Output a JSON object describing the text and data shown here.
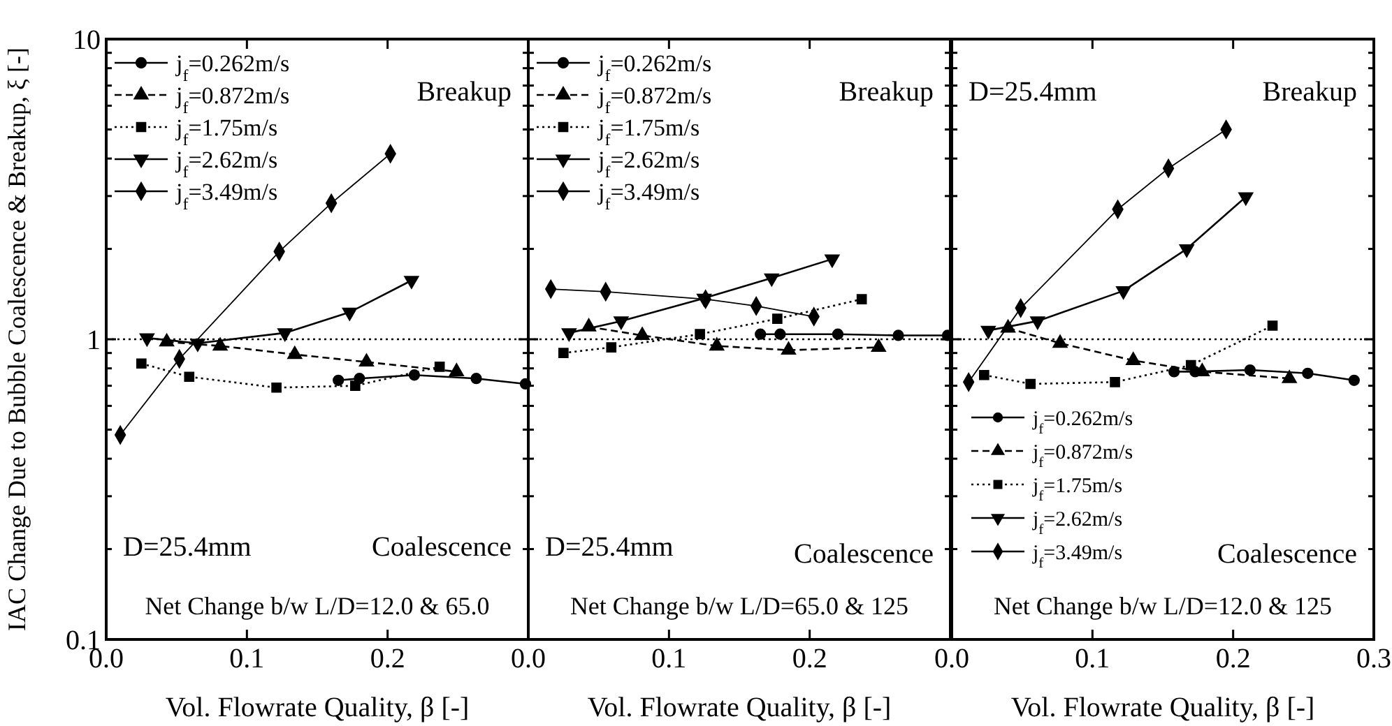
{
  "chart_data": [
    {
      "type": "line",
      "xlabel": "Vol. Flowrate Quality,  β [-]",
      "ylabel": "IAC Change Due to Bubble Coalescence & Breakup,  ξ [-]",
      "log": "y",
      "xlim": [
        0,
        0.3
      ],
      "ylim": [
        0.1,
        10
      ],
      "xticks": [
        {
          "value": 0,
          "label": "0.0"
        },
        {
          "value": 0.1,
          "label": "0.1"
        },
        {
          "value": 0.2,
          "label": "0.2"
        },
        {
          "value": 0.3,
          "label": null
        }
      ],
      "yticks": [
        0.1,
        {
          "value": 0.2,
          "label": null
        },
        {
          "value": 0.3,
          "label": null
        },
        {
          "value": 0.4,
          "label": null
        },
        {
          "value": 0.5,
          "label": null
        },
        {
          "value": 0.6,
          "label": null
        },
        {
          "value": 0.7,
          "label": null
        },
        {
          "value": 0.8,
          "label": null
        },
        {
          "value": 0.9,
          "label": null
        },
        1,
        {
          "value": 2,
          "label": null
        },
        {
          "value": 3,
          "label": null
        },
        {
          "value": 4,
          "label": null
        },
        {
          "value": 5,
          "label": null
        },
        {
          "value": 6,
          "label": null
        },
        {
          "value": 7,
          "label": null
        },
        {
          "value": 8,
          "label": null
        },
        {
          "value": 9,
          "label": null
        },
        10
      ],
      "grid": false,
      "legend": "top left",
      "ref_lines": [
        {
          "axis": "y",
          "value": 1,
          "line_style": "dotted"
        }
      ],
      "annotations": [
        "Breakup",
        "D=25.4mm",
        "Coalescence",
        "Net Change b/w L/D=12.0 & 65.0"
      ],
      "series": [
        {
          "name": "j$_{f}$=0.262m/s",
          "color": "#000000",
          "marker": "circle",
          "line_style": "solid",
          "x": [
            0.165,
            0.18,
            0.219,
            0.263,
            0.298
          ],
          "values": [
            0.73,
            0.74,
            0.76,
            0.74,
            0.71
          ]
        },
        {
          "name": "j$_{f}$=0.872m/s",
          "color": "#000000",
          "marker": "triangle",
          "line_style": "dashed",
          "x": [
            0.043,
            0.081,
            0.134,
            0.185,
            0.249
          ],
          "values": [
            0.98,
            0.95,
            0.89,
            0.84,
            0.78
          ]
        },
        {
          "name": "j$_{f}$=1.75m/s",
          "color": "#000000",
          "marker": "square",
          "line_style": "dotted",
          "x": [
            0.025,
            0.059,
            0.121,
            0.177,
            0.237
          ],
          "values": [
            0.83,
            0.75,
            0.69,
            0.7,
            0.81
          ]
        },
        {
          "name": "j$_{f}$=2.62m/s",
          "color": "#000000",
          "marker": "triangle-down",
          "line_style": "solid",
          "x": [
            0.029,
            0.065,
            0.127,
            0.173,
            0.217
          ],
          "values": [
            1.01,
            0.97,
            1.05,
            1.23,
            1.57
          ]
        },
        {
          "name": "j$_{f}$=3.49m/s",
          "color": "#000000",
          "marker": "diamond",
          "line_style": "solid",
          "x": [
            0.01,
            0.052,
            0.123,
            0.16,
            0.202
          ],
          "values": [
            0.48,
            0.86,
            1.96,
            2.84,
            4.15
          ]
        }
      ]
    },
    {
      "type": "line",
      "xlabel": "Vol. Flowrate Quality,  β [-]",
      "log": "y",
      "xlim": [
        0,
        0.3
      ],
      "ylim": [
        0.1,
        10
      ],
      "tick_labels": "x",
      "xticks": [
        {
          "value": 0,
          "label": "0.0"
        },
        {
          "value": 0.1,
          "label": "0.1"
        },
        {
          "value": 0.2,
          "label": "0.2"
        },
        {
          "value": 0.3,
          "label": null
        }
      ],
      "yticks": [
        0.1,
        {
          "value": 0.2,
          "label": null
        },
        {
          "value": 0.3,
          "label": null
        },
        {
          "value": 0.4,
          "label": null
        },
        {
          "value": 0.5,
          "label": null
        },
        {
          "value": 0.6,
          "label": null
        },
        {
          "value": 0.7,
          "label": null
        },
        {
          "value": 0.8,
          "label": null
        },
        {
          "value": 0.9,
          "label": null
        },
        1,
        {
          "value": 2,
          "label": null
        },
        {
          "value": 3,
          "label": null
        },
        {
          "value": 4,
          "label": null
        },
        {
          "value": 5,
          "label": null
        },
        {
          "value": 6,
          "label": null
        },
        {
          "value": 7,
          "label": null
        },
        {
          "value": 8,
          "label": null
        },
        {
          "value": 9,
          "label": null
        },
        10
      ],
      "grid": false,
      "legend": "top left",
      "ref_lines": [
        {
          "axis": "y",
          "value": 1,
          "line_style": "dotted"
        }
      ],
      "annotations": [
        "Breakup",
        "D=25.4mm",
        "Coalescence",
        "Net Change b/w L/D=65.0 & 125"
      ],
      "series": [
        {
          "name": "j$_{f}$=0.262m/s",
          "color": "#000000",
          "marker": "circle",
          "line_style": "solid",
          "x": [
            0.165,
            0.179,
            0.22,
            0.263,
            0.298
          ],
          "values": [
            1.04,
            1.04,
            1.04,
            1.03,
            1.03
          ]
        },
        {
          "name": "j$_{f}$=0.872m/s",
          "color": "#000000",
          "marker": "triangle",
          "line_style": "dashed",
          "x": [
            0.043,
            0.081,
            0.134,
            0.185,
            0.249
          ],
          "values": [
            1.1,
            1.03,
            0.95,
            0.92,
            0.94
          ]
        },
        {
          "name": "j$_{f}$=1.75m/s",
          "color": "#000000",
          "marker": "square",
          "line_style": "dotted",
          "x": [
            0.025,
            0.059,
            0.122,
            0.177,
            0.237
          ],
          "values": [
            0.9,
            0.94,
            1.04,
            1.17,
            1.36
          ]
        },
        {
          "name": "j$_{f}$=2.62m/s",
          "color": "#000000",
          "marker": "triangle-down",
          "line_style": "solid",
          "x": [
            0.029,
            0.066,
            0.125,
            0.173,
            0.216
          ],
          "values": [
            1.05,
            1.15,
            1.37,
            1.6,
            1.85
          ]
        },
        {
          "name": "j$_{f}$=3.49m/s",
          "color": "#000000",
          "marker": "diamond",
          "line_style": "solid",
          "x": [
            0.016,
            0.055,
            0.126,
            0.162,
            0.203
          ],
          "values": [
            1.47,
            1.44,
            1.36,
            1.29,
            1.19
          ]
        }
      ]
    },
    {
      "type": "line",
      "xlabel": "Vol. Flowrate Quality,  β [-]",
      "log": "y",
      "xlim": [
        0,
        0.3
      ],
      "ylim": [
        0.1,
        10
      ],
      "tick_labels": "x",
      "xticks": [
        {
          "value": 0,
          "label": "0.0"
        },
        {
          "value": 0.1,
          "label": "0.1"
        },
        {
          "value": 0.2,
          "label": "0.2"
        },
        {
          "value": 0.3,
          "label": "0.3"
        }
      ],
      "yticks": [
        0.1,
        {
          "value": 0.2,
          "label": null
        },
        {
          "value": 0.3,
          "label": null
        },
        {
          "value": 0.4,
          "label": null
        },
        {
          "value": 0.5,
          "label": null
        },
        {
          "value": 0.6,
          "label": null
        },
        {
          "value": 0.7,
          "label": null
        },
        {
          "value": 0.8,
          "label": null
        },
        {
          "value": 0.9,
          "label": null
        },
        1,
        {
          "value": 2,
          "label": null
        },
        {
          "value": 3,
          "label": null
        },
        {
          "value": 4,
          "label": null
        },
        {
          "value": 5,
          "label": null
        },
        {
          "value": 6,
          "label": null
        },
        {
          "value": 7,
          "label": null
        },
        {
          "value": 8,
          "label": null
        },
        {
          "value": 9,
          "label": null
        },
        10
      ],
      "grid": false,
      "legend": "bottom left",
      "ref_lines": [
        {
          "axis": "y",
          "value": 1,
          "line_style": "dotted"
        }
      ],
      "annotations": [
        "Breakup",
        "D=25.4mm",
        "Coalescence",
        "Net Change b/w L/D=12.0 & 125"
      ],
      "series": [
        {
          "name": "j$_{f}$=0.262m/s",
          "color": "#000000",
          "marker": "circle",
          "line_style": "solid",
          "x": [
            0.158,
            0.173,
            0.212,
            0.253,
            0.286
          ],
          "values": [
            0.78,
            0.78,
            0.79,
            0.77,
            0.73
          ]
        },
        {
          "name": "j$_{f}$=0.872m/s",
          "color": "#000000",
          "marker": "triangle",
          "line_style": "dashed",
          "x": [
            0.04,
            0.077,
            0.129,
            0.178,
            0.24
          ],
          "values": [
            1.09,
            0.97,
            0.85,
            0.78,
            0.74
          ]
        },
        {
          "name": "j$_{f}$=1.75m/s",
          "color": "#000000",
          "marker": "square",
          "line_style": "dotted",
          "x": [
            0.023,
            0.056,
            0.116,
            0.17,
            0.228
          ],
          "values": [
            0.76,
            0.71,
            0.72,
            0.82,
            1.11
          ]
        },
        {
          "name": "j$_{f}$=2.62m/s",
          "color": "#000000",
          "marker": "triangle-down",
          "line_style": "solid",
          "x": [
            0.026,
            0.061,
            0.122,
            0.167,
            0.209
          ],
          "values": [
            1.07,
            1.15,
            1.45,
            2.0,
            2.98
          ]
        },
        {
          "name": "j$_{f}$=3.49m/s",
          "color": "#000000",
          "marker": "diamond",
          "line_style": "solid",
          "x": [
            0.012,
            0.049,
            0.118,
            0.154,
            0.195
          ],
          "values": [
            0.72,
            1.27,
            2.71,
            3.71,
            5.0
          ]
        }
      ]
    }
  ]
}
